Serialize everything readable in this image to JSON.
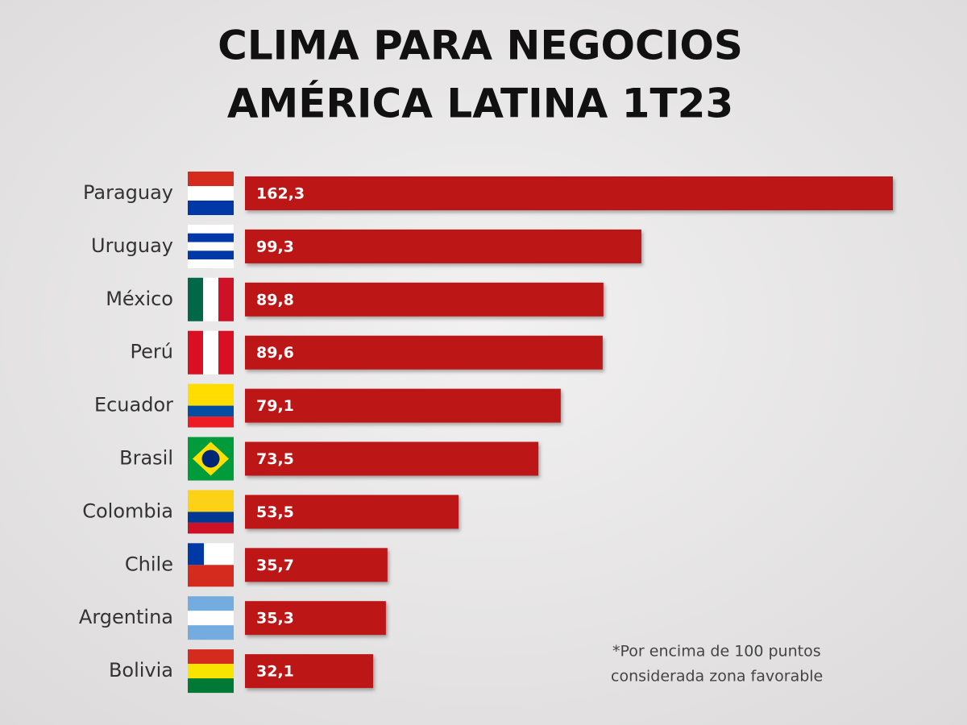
{
  "chart_data": {
    "type": "bar",
    "orientation": "horizontal",
    "title": [
      "CLIMA PARA NEGOCIOS",
      "AMÉRICA LATINA 1T23"
    ],
    "categories": [
      "Paraguay",
      "Uruguay",
      "México",
      "Perú",
      "Ecuador",
      "Brasil",
      "Colombia",
      "Chile",
      "Argentina",
      "Bolivia"
    ],
    "values": [
      162.3,
      99.3,
      89.8,
      89.6,
      79.1,
      73.5,
      53.5,
      35.7,
      35.3,
      32.1
    ],
    "value_labels": [
      "162,3",
      "99,3",
      "89,8",
      "89,6",
      "79,1",
      "73,5",
      "53,5",
      "35,7",
      "35,3",
      "32,1"
    ],
    "color": "#bd1418",
    "note": [
      "*Por encima de 100 puntos",
      "considerada zona favorable"
    ]
  }
}
